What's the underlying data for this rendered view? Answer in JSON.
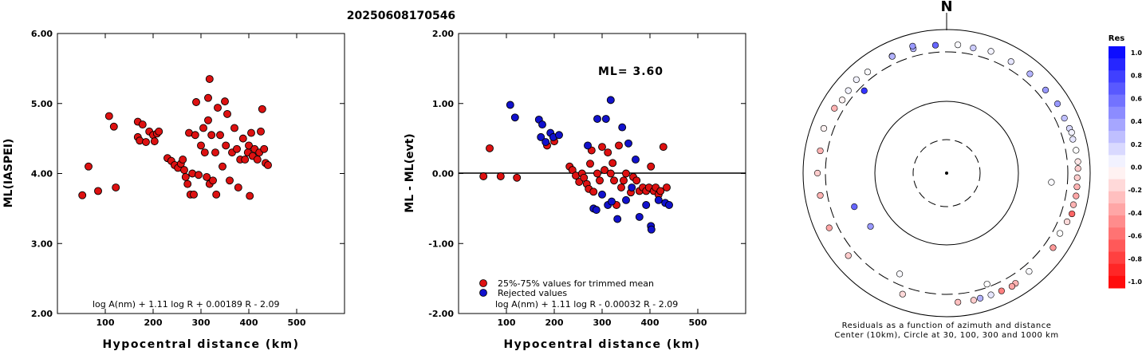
{
  "header": {
    "event_id": "20250608170546"
  },
  "colors": {
    "accepted": "#dd1111",
    "rejected": "#1111cc",
    "frame": "#000000"
  },
  "chart_data": [
    {
      "type": "scatter",
      "id": "left",
      "ylabel": "ML(IASPEI)",
      "xlabel": "Hypocentral distance (km)",
      "xlim": [
        0,
        600
      ],
      "ylim": [
        2.0,
        6.0
      ],
      "xticks": [
        100,
        200,
        300,
        400,
        500
      ],
      "yticks": [
        "2.00",
        "3.00",
        "4.00",
        "5.00",
        "6.00"
      ],
      "formula": "log A(nm) + 1.11 log R + 0.00189 R - 2.09",
      "series": [
        {
          "color": "#dd1111",
          "points": [
            [
              52,
              3.69
            ],
            [
              65,
              4.1
            ],
            [
              85,
              3.75
            ],
            [
              108,
              4.82
            ],
            [
              118,
              4.67
            ],
            [
              122,
              3.8
            ],
            [
              168,
              4.74
            ],
            [
              178,
              4.7
            ],
            [
              168,
              4.52
            ],
            [
              172,
              4.47
            ],
            [
              185,
              4.45
            ],
            [
              192,
              4.6
            ],
            [
              200,
              4.55
            ],
            [
              208,
              4.57
            ],
            [
              203,
              4.46
            ],
            [
              212,
              4.6
            ],
            [
              230,
              4.22
            ],
            [
              238,
              4.18
            ],
            [
              245,
              4.12
            ],
            [
              252,
              4.08
            ],
            [
              258,
              4.14
            ],
            [
              262,
              4.2
            ],
            [
              265,
              4.05
            ],
            [
              268,
              3.95
            ],
            [
              272,
              3.85
            ],
            [
              275,
              4.58
            ],
            [
              278,
              3.7
            ],
            [
              282,
              4.0
            ],
            [
              285,
              3.7
            ],
            [
              288,
              4.55
            ],
            [
              290,
              5.02
            ],
            [
              295,
              3.98
            ],
            [
              300,
              4.4
            ],
            [
              305,
              4.65
            ],
            [
              308,
              4.3
            ],
            [
              312,
              3.95
            ],
            [
              315,
              4.76
            ],
            [
              318,
              5.35
            ],
            [
              315,
              5.08
            ],
            [
              318,
              3.85
            ],
            [
              322,
              4.55
            ],
            [
              325,
              3.9
            ],
            [
              330,
              4.3
            ],
            [
              332,
              3.7
            ],
            [
              335,
              4.94
            ],
            [
              340,
              4.55
            ],
            [
              345,
              4.1
            ],
            [
              350,
              5.03
            ],
            [
              352,
              4.4
            ],
            [
              355,
              4.85
            ],
            [
              360,
              3.9
            ],
            [
              365,
              4.3
            ],
            [
              370,
              4.65
            ],
            [
              375,
              4.35
            ],
            [
              378,
              3.8
            ],
            [
              382,
              4.2
            ],
            [
              388,
              4.5
            ],
            [
              392,
              4.2
            ],
            [
              398,
              4.3
            ],
            [
              400,
              4.4
            ],
            [
              402,
              3.68
            ],
            [
              405,
              4.58
            ],
            [
              408,
              4.25
            ],
            [
              412,
              4.35
            ],
            [
              418,
              4.2
            ],
            [
              422,
              4.3
            ],
            [
              425,
              4.6
            ],
            [
              428,
              4.92
            ],
            [
              432,
              4.35
            ],
            [
              435,
              4.15
            ],
            [
              440,
              4.12
            ]
          ]
        }
      ]
    },
    {
      "type": "scatter",
      "id": "middle",
      "ylabel": "ML - ML(evt)",
      "xlabel": "Hypocentral distance (km)",
      "xlim": [
        0,
        600
      ],
      "ylim": [
        -2.0,
        2.0
      ],
      "xticks": [
        100,
        200,
        300,
        400,
        500
      ],
      "yticks": [
        "-2.00",
        "-1.00",
        "0.00",
        "1.00",
        "2.00"
      ],
      "reference_line": 0.0,
      "ml_label": "ML= 3.60",
      "legend": [
        {
          "label": "25%-75% values for trimmed mean",
          "color": "#dd1111"
        },
        {
          "label": "Rejected values",
          "color": "#1111cc"
        }
      ],
      "formula": "log A(nm) + 1.11 log R - 0.00032 R - 2.09",
      "series": [
        {
          "name": "25%-75% values for trimmed mean",
          "color": "#dd1111",
          "points": [
            [
              52,
              -0.04
            ],
            [
              65,
              0.36
            ],
            [
              88,
              -0.04
            ],
            [
              122,
              -0.06
            ],
            [
              185,
              0.4
            ],
            [
              200,
              0.46
            ],
            [
              232,
              0.1
            ],
            [
              238,
              0.05
            ],
            [
              245,
              -0.03
            ],
            [
              252,
              -0.12
            ],
            [
              258,
              0.0
            ],
            [
              262,
              -0.06
            ],
            [
              268,
              -0.15
            ],
            [
              272,
              -0.22
            ],
            [
              275,
              0.14
            ],
            [
              278,
              0.33
            ],
            [
              282,
              -0.26
            ],
            [
              290,
              0.0
            ],
            [
              295,
              -0.1
            ],
            [
              300,
              0.38
            ],
            [
              305,
              0.05
            ],
            [
              312,
              0.3
            ],
            [
              318,
              0.0
            ],
            [
              322,
              0.15
            ],
            [
              325,
              -0.1
            ],
            [
              330,
              -0.45
            ],
            [
              335,
              0.4
            ],
            [
              340,
              -0.2
            ],
            [
              345,
              -0.1
            ],
            [
              350,
              0.0
            ],
            [
              360,
              -0.27
            ],
            [
              365,
              -0.05
            ],
            [
              372,
              -0.1
            ],
            [
              378,
              -0.25
            ],
            [
              385,
              -0.2
            ],
            [
              392,
              -0.25
            ],
            [
              398,
              -0.2
            ],
            [
              402,
              0.1
            ],
            [
              408,
              -0.25
            ],
            [
              412,
              -0.2
            ],
            [
              418,
              -0.3
            ],
            [
              422,
              -0.25
            ],
            [
              428,
              0.38
            ],
            [
              435,
              -0.2
            ]
          ]
        },
        {
          "name": "Rejected values",
          "color": "#1111cc",
          "points": [
            [
              108,
              0.98
            ],
            [
              118,
              0.8
            ],
            [
              168,
              0.77
            ],
            [
              175,
              0.7
            ],
            [
              172,
              0.52
            ],
            [
              182,
              0.45
            ],
            [
              192,
              0.58
            ],
            [
              198,
              0.52
            ],
            [
              210,
              0.55
            ],
            [
              270,
              0.4
            ],
            [
              282,
              -0.5
            ],
            [
              288,
              -0.52
            ],
            [
              290,
              0.78
            ],
            [
              300,
              -0.3
            ],
            [
              308,
              0.78
            ],
            [
              312,
              -0.45
            ],
            [
              318,
              1.05
            ],
            [
              320,
              -0.4
            ],
            [
              332,
              -0.65
            ],
            [
              342,
              0.66
            ],
            [
              350,
              -0.38
            ],
            [
              355,
              0.43
            ],
            [
              362,
              -0.2
            ],
            [
              370,
              0.2
            ],
            [
              378,
              -0.62
            ],
            [
              392,
              -0.45
            ],
            [
              402,
              -0.75
            ],
            [
              403,
              -0.8
            ],
            [
              418,
              -0.38
            ],
            [
              432,
              -0.42
            ],
            [
              440,
              -0.45
            ]
          ]
        }
      ]
    },
    {
      "type": "scatter",
      "id": "polar",
      "north_label": "N",
      "caption_line1": "Residuals as a function of azimuth and distance",
      "caption_line2": "Center (10km), Circle at 30, 100, 300 and 1000 km",
      "colorbar": {
        "title": "Res",
        "labels": [
          "1.0",
          "0.8",
          "0.6",
          "0.4",
          "0.2",
          "0.0",
          "-0.2",
          "-0.4",
          "-0.6",
          "-0.8",
          "-1.0"
        ]
      },
      "rings_km": [
        30,
        100,
        300,
        1000
      ],
      "points": [
        [
          5,
          450,
          0.02
        ],
        [
          12,
          430,
          0.2
        ],
        [
          20,
          470,
          0.05
        ],
        [
          -5,
          440,
          0.6
        ],
        [
          -15,
          450,
          0.3
        ],
        [
          -25,
          460,
          0.25
        ],
        [
          30,
          450,
          0.1
        ],
        [
          40,
          470,
          0.3
        ],
        [
          50,
          460,
          0.4
        ],
        [
          58,
          500,
          0.4
        ],
        [
          65,
          480,
          0.25
        ],
        [
          70,
          500,
          0.15
        ],
        [
          72,
          520,
          0.05
        ],
        [
          75,
          500,
          0.1
        ],
        [
          80,
          520,
          0.0
        ],
        [
          85,
          530,
          -0.1
        ],
        [
          88,
          520,
          -0.2
        ],
        [
          92,
          500,
          -0.2
        ],
        [
          96,
          510,
          -0.3
        ],
        [
          100,
          520,
          -0.35
        ],
        [
          104,
          500,
          -0.3
        ],
        [
          108,
          530,
          -0.6
        ],
        [
          112,
          480,
          -0.15
        ],
        [
          118,
          440,
          0.0
        ],
        [
          125,
          480,
          -0.4
        ],
        [
          140,
          440,
          0.02
        ],
        [
          148,
          480,
          -0.3
        ],
        [
          150,
          500,
          -0.35
        ],
        [
          155,
          480,
          -0.5
        ],
        [
          160,
          470,
          0.1
        ],
        [
          165,
          470,
          0.3
        ],
        [
          168,
          480,
          -0.2
        ],
        [
          175,
          470,
          -0.25
        ],
        [
          200,
          450,
          -0.15
        ],
        [
          230,
          440,
          -0.2
        ],
        [
          245,
          470,
          -0.35
        ],
        [
          260,
          440,
          -0.3
        ],
        [
          270,
          460,
          -0.2
        ],
        [
          280,
          440,
          -0.3
        ],
        [
          290,
          500,
          -0.05
        ],
        [
          300,
          470,
          -0.3
        ],
        [
          305,
          420,
          -0.05
        ],
        [
          310,
          440,
          0.05
        ],
        [
          316,
          480,
          0.05
        ],
        [
          322,
          440,
          0.02
        ],
        [
          335,
          450,
          0.3
        ],
        [
          345,
          520,
          0.4
        ],
        [
          -45,
          270,
          0.8
        ],
        [
          95,
          210,
          0.02
        ],
        [
          160,
          280,
          0.0
        ],
        [
          205,
          240,
          0.02
        ],
        [
          235,
          160,
          0.4
        ],
        [
          250,
          180,
          0.6
        ]
      ]
    }
  ]
}
